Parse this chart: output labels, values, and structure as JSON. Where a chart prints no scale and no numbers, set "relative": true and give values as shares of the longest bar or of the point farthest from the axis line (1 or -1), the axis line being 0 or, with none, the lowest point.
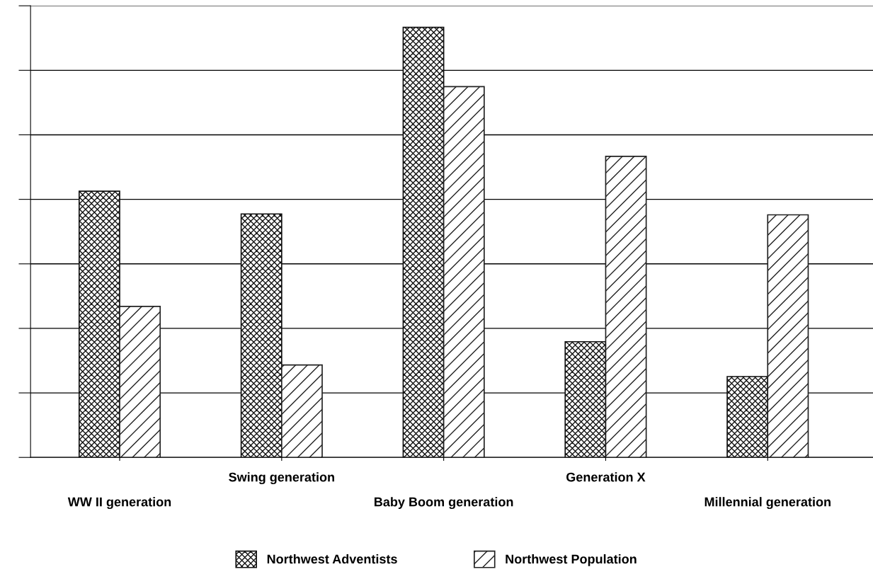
{
  "chart_data": {
    "type": "bar",
    "relative": true,
    "categories": [
      "WW II generation",
      "Swing generation",
      "Baby Boom generation",
      "Generation X",
      "Millennial generation"
    ],
    "series": [
      {
        "name": "Northwest Adventists",
        "color": "#111111",
        "values": [
          0.619,
          0.566,
          1,
          0.269,
          0.188
        ]
      },
      {
        "name": "Northwest Population",
        "color": "#222222",
        "values": [
          0.351,
          0.215,
          0.862,
          0.7,
          0.564
        ]
      }
    ],
    "grid": "y",
    "legend": "bottom",
    "tick_labels": "x"
  }
}
